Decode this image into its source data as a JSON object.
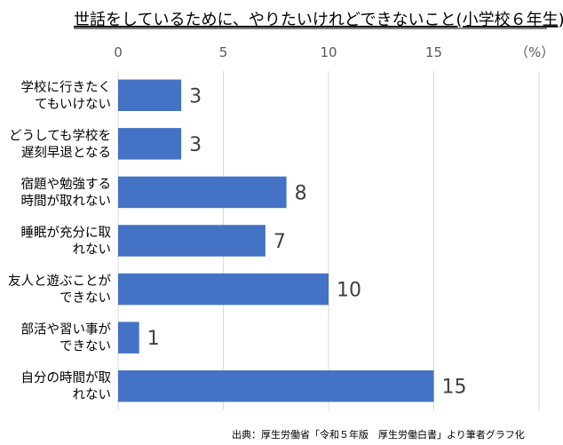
{
  "chart_data": {
    "type": "bar",
    "orientation": "horizontal",
    "title": "世話をしているために、やりたいけれどできないこと(小学校６年生)",
    "categories": [
      [
        "学校に行きたく",
        "てもいけない"
      ],
      [
        "どうしても学校を",
        "遅刻早退となる"
      ],
      [
        "宿題や勉強する",
        "時間が取れない"
      ],
      [
        "睡眠が充分に取",
        "れない"
      ],
      [
        "友人と遊ぶことが",
        "できない"
      ],
      [
        "部活や習い事が",
        "できない"
      ],
      [
        "自分の時間が取",
        "れない"
      ]
    ],
    "values": [
      3,
      3,
      8,
      7,
      10,
      1,
      15
    ],
    "xlim": [
      0,
      20
    ],
    "ticks": [
      0,
      5,
      10,
      15
    ],
    "axis_position": "top",
    "unit_label": "（%）",
    "grid": true,
    "bar_color": "#4472c4",
    "source": "出典：厚生労働省「令和５年版　厚生労働白書」より筆者グラフ化"
  }
}
